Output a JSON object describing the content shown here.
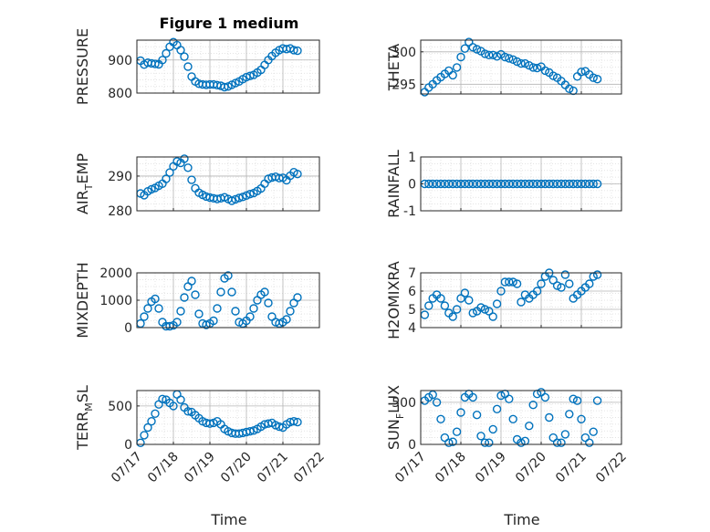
{
  "figure_title": "Figure 1 medium",
  "colors": {
    "marker": "#0072BD",
    "axes": "#262626",
    "grid": "#b4b4b4"
  },
  "chart_data": [
    {
      "id": "pressure",
      "type": "scatter",
      "grid": true,
      "ylabel": "PRESSURE",
      "ylim": [
        800,
        960
      ],
      "yticks": [
        800,
        900
      ],
      "xlim": [
        0,
        5
      ],
      "xticks": [
        "07/17",
        "07/18",
        "07/19",
        "07/20",
        "07/21",
        "07/22"
      ],
      "xlabel": "",
      "series": [
        {
          "x": [
            0.1,
            0.2,
            0.3,
            0.4,
            0.5,
            0.6,
            0.7,
            0.8,
            0.9,
            1.0,
            1.1,
            1.2,
            1.3,
            1.4,
            1.5,
            1.6,
            1.7,
            1.8,
            1.9,
            2.0,
            2.1,
            2.2,
            2.3,
            2.4,
            2.5,
            2.6,
            2.7,
            2.8,
            2.9,
            3.0,
            3.1,
            3.2,
            3.3,
            3.4,
            3.5,
            3.6,
            3.7,
            3.8,
            3.9,
            4.0,
            4.1,
            4.2,
            4.3,
            4.4
          ],
          "y": [
            898,
            886,
            892,
            890,
            888,
            887,
            900,
            920,
            940,
            954,
            945,
            930,
            910,
            880,
            850,
            835,
            828,
            826,
            825,
            826,
            826,
            824,
            822,
            818,
            820,
            825,
            830,
            835,
            842,
            848,
            852,
            855,
            862,
            870,
            885,
            900,
            912,
            922,
            930,
            935,
            933,
            935,
            930,
            928
          ]
        }
      ]
    },
    {
      "id": "theta",
      "type": "scatter",
      "grid": true,
      "ylabel": "THETA",
      "ylim": [
        293.5,
        301.8
      ],
      "yticks": [
        295,
        300
      ],
      "xlim": [
        0,
        5
      ],
      "xticks": [
        "07/17",
        "07/18",
        "07/19",
        "07/20",
        "07/21",
        "07/22"
      ],
      "xlabel": "",
      "series": [
        {
          "x": [
            0.1,
            0.2,
            0.3,
            0.4,
            0.5,
            0.6,
            0.7,
            0.8,
            0.9,
            1.0,
            1.1,
            1.2,
            1.3,
            1.4,
            1.5,
            1.6,
            1.7,
            1.8,
            1.9,
            2.0,
            2.1,
            2.2,
            2.3,
            2.4,
            2.5,
            2.6,
            2.7,
            2.8,
            2.9,
            3.0,
            3.1,
            3.2,
            3.3,
            3.4,
            3.5,
            3.6,
            3.7,
            3.8,
            3.9,
            4.0,
            4.1,
            4.2,
            4.3,
            4.4
          ],
          "y": [
            293.8,
            294.5,
            295.0,
            295.6,
            296.1,
            296.6,
            297.1,
            296.4,
            297.6,
            299.2,
            300.5,
            301.5,
            300.7,
            300.4,
            300.1,
            299.7,
            299.5,
            299.5,
            299.3,
            299.6,
            299.2,
            299.0,
            298.8,
            298.5,
            298.2,
            298.2,
            297.9,
            297.6,
            297.5,
            297.7,
            297.1,
            296.8,
            296.3,
            296.0,
            295.5,
            294.9,
            294.3,
            294.0,
            296.2,
            296.9,
            297.0,
            296.5,
            296.0,
            295.8
          ]
        }
      ]
    },
    {
      "id": "air_temp",
      "type": "scatter",
      "grid": true,
      "ylabel": "AIR_TEMP",
      "ylim": [
        280,
        295.5
      ],
      "yticks": [
        280,
        290
      ],
      "xlim": [
        0,
        5
      ],
      "xticks": [
        "07/17",
        "07/18",
        "07/19",
        "07/20",
        "07/21",
        "07/22"
      ],
      "xlabel": "",
      "series": [
        {
          "x": [
            0.1,
            0.2,
            0.3,
            0.4,
            0.5,
            0.6,
            0.7,
            0.8,
            0.9,
            1.0,
            1.1,
            1.2,
            1.3,
            1.4,
            1.5,
            1.6,
            1.7,
            1.8,
            1.9,
            2.0,
            2.1,
            2.2,
            2.3,
            2.4,
            2.5,
            2.6,
            2.7,
            2.8,
            2.9,
            3.0,
            3.1,
            3.2,
            3.3,
            3.4,
            3.5,
            3.6,
            3.7,
            3.8,
            3.9,
            4.0,
            4.1,
            4.2,
            4.3,
            4.4
          ],
          "y": [
            285.0,
            284.5,
            285.6,
            286.2,
            286.6,
            287.2,
            287.8,
            289.2,
            291.0,
            292.8,
            294.2,
            293.8,
            295.0,
            292.4,
            288.9,
            286.5,
            285.2,
            284.6,
            284.1,
            283.8,
            283.6,
            283.4,
            283.6,
            283.9,
            283.4,
            282.9,
            283.3,
            283.7,
            284.0,
            284.4,
            284.8,
            285.1,
            285.7,
            286.4,
            287.8,
            289.2,
            289.6,
            289.8,
            289.4,
            289.5,
            288.8,
            290.1,
            291.1,
            290.6
          ]
        }
      ]
    },
    {
      "id": "rainfall",
      "type": "scatter",
      "grid": true,
      "ylabel": "RAINFALL",
      "ylim": [
        -1,
        1
      ],
      "yticks": [
        -1,
        0,
        1
      ],
      "xlim": [
        0,
        5
      ],
      "xticks": [
        "07/17",
        "07/18",
        "07/19",
        "07/20",
        "07/21",
        "07/22"
      ],
      "xlabel": "",
      "series": [
        {
          "x": [
            0.1,
            0.2,
            0.3,
            0.4,
            0.5,
            0.6,
            0.7,
            0.8,
            0.9,
            1.0,
            1.1,
            1.2,
            1.3,
            1.4,
            1.5,
            1.6,
            1.7,
            1.8,
            1.9,
            2.0,
            2.1,
            2.2,
            2.3,
            2.4,
            2.5,
            2.6,
            2.7,
            2.8,
            2.9,
            3.0,
            3.1,
            3.2,
            3.3,
            3.4,
            3.5,
            3.6,
            3.7,
            3.8,
            3.9,
            4.0,
            4.1,
            4.2,
            4.3,
            4.4
          ],
          "y": [
            0,
            0,
            0,
            0,
            0,
            0,
            0,
            0,
            0,
            0,
            0,
            0,
            0,
            0,
            0,
            0,
            0,
            0,
            0,
            0,
            0,
            0,
            0,
            0,
            0,
            0,
            0,
            0,
            0,
            0,
            0,
            0,
            0,
            0,
            0,
            0,
            0,
            0,
            0,
            0,
            0,
            0,
            0,
            0
          ]
        }
      ]
    },
    {
      "id": "mixdepth",
      "type": "scatter",
      "grid": true,
      "ylabel": "MIXDEPTH",
      "ylim": [
        0,
        2000
      ],
      "yticks": [
        0,
        1000,
        2000
      ],
      "xlim": [
        0,
        5
      ],
      "xticks": [
        "07/17",
        "07/18",
        "07/19",
        "07/20",
        "07/21",
        "07/22"
      ],
      "xlabel": "",
      "series": [
        {
          "x": [
            0.1,
            0.2,
            0.3,
            0.4,
            0.5,
            0.6,
            0.7,
            0.8,
            0.9,
            1.0,
            1.1,
            1.2,
            1.3,
            1.4,
            1.5,
            1.6,
            1.7,
            1.8,
            1.9,
            2.0,
            2.1,
            2.2,
            2.3,
            2.4,
            2.5,
            2.6,
            2.7,
            2.8,
            2.9,
            3.0,
            3.1,
            3.2,
            3.3,
            3.4,
            3.5,
            3.6,
            3.7,
            3.8,
            3.9,
            4.0,
            4.1,
            4.2,
            4.3,
            4.4
          ],
          "y": [
            150,
            400,
            700,
            950,
            1050,
            700,
            200,
            50,
            50,
            80,
            200,
            600,
            1100,
            1500,
            1700,
            1200,
            500,
            150,
            100,
            150,
            250,
            700,
            1300,
            1800,
            1900,
            1300,
            600,
            200,
            150,
            250,
            400,
            700,
            1000,
            1200,
            1300,
            900,
            400,
            200,
            150,
            200,
            300,
            600,
            900,
            1100
          ]
        }
      ]
    },
    {
      "id": "h2omixra",
      "type": "scatter",
      "grid": true,
      "ylabel": "H2OMIXRA",
      "ylim": [
        4,
        7
      ],
      "yticks": [
        4,
        5,
        6,
        7
      ],
      "xlim": [
        0,
        5
      ],
      "xticks": [
        "07/17",
        "07/18",
        "07/19",
        "07/20",
        "07/21",
        "07/22"
      ],
      "xlabel": "",
      "series": [
        {
          "x": [
            0.1,
            0.2,
            0.3,
            0.4,
            0.5,
            0.6,
            0.7,
            0.8,
            0.9,
            1.0,
            1.1,
            1.2,
            1.3,
            1.4,
            1.5,
            1.6,
            1.7,
            1.8,
            1.9,
            2.0,
            2.1,
            2.2,
            2.3,
            2.4,
            2.5,
            2.6,
            2.7,
            2.8,
            2.9,
            3.0,
            3.1,
            3.2,
            3.3,
            3.4,
            3.5,
            3.6,
            3.7,
            3.8,
            3.9,
            4.0,
            4.1,
            4.2,
            4.3,
            4.4
          ],
          "y": [
            4.7,
            5.2,
            5.6,
            5.8,
            5.6,
            5.2,
            4.8,
            4.6,
            5.0,
            5.6,
            5.9,
            5.5,
            4.8,
            4.9,
            5.1,
            5.0,
            4.9,
            4.6,
            5.3,
            6.0,
            6.5,
            6.5,
            6.5,
            6.4,
            5.4,
            5.8,
            5.6,
            5.8,
            6.0,
            6.4,
            6.8,
            7.0,
            6.6,
            6.3,
            6.2,
            6.9,
            6.4,
            5.6,
            5.8,
            6.0,
            6.2,
            6.4,
            6.8,
            6.9
          ]
        }
      ]
    },
    {
      "id": "terr_msl",
      "type": "scatter",
      "grid": true,
      "ylabel": "TERR_MSL",
      "ylim": [
        0,
        700
      ],
      "yticks": [
        0,
        500
      ],
      "xlim": [
        0,
        5
      ],
      "xticks": [
        "07/17",
        "07/18",
        "07/19",
        "07/20",
        "07/21",
        "07/22"
      ],
      "xlabel": "Time",
      "series": [
        {
          "x": [
            0.1,
            0.2,
            0.3,
            0.4,
            0.5,
            0.6,
            0.7,
            0.8,
            0.9,
            1.0,
            1.1,
            1.2,
            1.3,
            1.4,
            1.5,
            1.6,
            1.7,
            1.8,
            1.9,
            2.0,
            2.1,
            2.2,
            2.3,
            2.4,
            2.5,
            2.6,
            2.7,
            2.8,
            2.9,
            3.0,
            3.1,
            3.2,
            3.3,
            3.4,
            3.5,
            3.6,
            3.7,
            3.8,
            3.9,
            4.0,
            4.1,
            4.2,
            4.3,
            4.4
          ],
          "y": [
            20,
            120,
            220,
            300,
            400,
            520,
            590,
            580,
            540,
            500,
            650,
            580,
            480,
            430,
            420,
            380,
            340,
            300,
            280,
            270,
            280,
            300,
            260,
            200,
            170,
            150,
            140,
            140,
            150,
            160,
            170,
            180,
            200,
            230,
            260,
            270,
            280,
            250,
            230,
            220,
            260,
            290,
            300,
            290
          ]
        }
      ]
    },
    {
      "id": "sun_flux",
      "type": "scatter",
      "grid": true,
      "ylabel": "SUN_FLUX",
      "ylim": [
        0,
        640
      ],
      "yticks": [
        0,
        500
      ],
      "xlim": [
        0,
        5
      ],
      "xticks": [
        "07/17",
        "07/18",
        "07/19",
        "07/20",
        "07/21",
        "07/22"
      ],
      "xlabel": "Time",
      "series": [
        {
          "x": [
            0.1,
            0.2,
            0.3,
            0.4,
            0.5,
            0.6,
            0.7,
            0.8,
            0.9,
            1.0,
            1.1,
            1.2,
            1.3,
            1.4,
            1.5,
            1.6,
            1.7,
            1.8,
            1.9,
            2.0,
            2.1,
            2.2,
            2.3,
            2.4,
            2.5,
            2.6,
            2.7,
            2.8,
            2.9,
            3.0,
            3.1,
            3.2,
            3.3,
            3.4,
            3.5,
            3.6,
            3.7,
            3.8,
            3.9,
            4.0,
            4.1,
            4.2,
            4.3,
            4.4
          ],
          "y": [
            520,
            560,
            590,
            500,
            300,
            80,
            20,
            30,
            150,
            380,
            560,
            600,
            560,
            350,
            100,
            20,
            20,
            180,
            420,
            580,
            600,
            540,
            300,
            60,
            20,
            40,
            220,
            470,
            600,
            620,
            560,
            320,
            80,
            20,
            20,
            120,
            360,
            540,
            520,
            300,
            80,
            20,
            150,
            520
          ]
        }
      ]
    }
  ]
}
